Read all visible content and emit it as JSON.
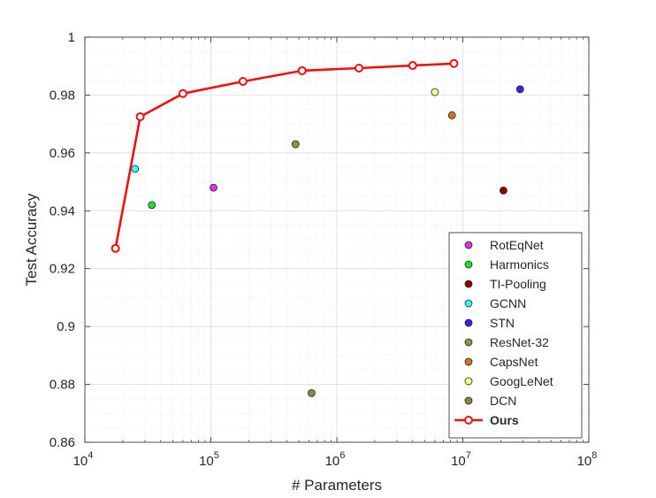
{
  "chart_data": {
    "type": "scatter",
    "xlabel": "# Parameters",
    "ylabel": "Test Accuracy",
    "xscale": "log",
    "xlim": [
      10000,
      100000000
    ],
    "ylim": [
      0.86,
      1.0
    ],
    "x_ticks": [
      {
        "value": 10000,
        "base": "10",
        "exp": "4"
      },
      {
        "value": 100000,
        "base": "10",
        "exp": "5"
      },
      {
        "value": 1000000,
        "base": "10",
        "exp": "6"
      },
      {
        "value": 10000000,
        "base": "10",
        "exp": "7"
      },
      {
        "value": 100000000,
        "base": "10",
        "exp": "8"
      }
    ],
    "y_ticks": [
      {
        "value": 0.86,
        "label": "0.86"
      },
      {
        "value": 0.88,
        "label": "0.88"
      },
      {
        "value": 0.9,
        "label": "0.9"
      },
      {
        "value": 0.92,
        "label": "0.92"
      },
      {
        "value": 0.94,
        "label": "0.94"
      },
      {
        "value": 0.96,
        "label": "0.96"
      },
      {
        "value": 0.98,
        "label": "0.98"
      },
      {
        "value": 1.0,
        "label": "1"
      }
    ],
    "grid": true,
    "legend_position": "bottom-right",
    "series": [
      {
        "name": "RotEqNet",
        "color": "#e030e8",
        "points": [
          [
            105000,
            0.948
          ]
        ]
      },
      {
        "name": "Harmonics",
        "color": "#22dd33",
        "points": [
          [
            34000,
            0.942
          ]
        ]
      },
      {
        "name": "TI-Pooling",
        "color": "#8b0000",
        "points": [
          [
            21000000,
            0.947
          ]
        ]
      },
      {
        "name": "GCNN",
        "color": "#33ffff",
        "points": [
          [
            25000,
            0.9545
          ]
        ]
      },
      {
        "name": "STN",
        "color": "#3a22e0",
        "points": [
          [
            28500000,
            0.982
          ]
        ]
      },
      {
        "name": "ResNet-32",
        "color": "#8a9a3a",
        "points": [
          [
            470000,
            0.963
          ]
        ]
      },
      {
        "name": "CapsNet",
        "color": "#d4701e",
        "points": [
          [
            8200000,
            0.973
          ]
        ]
      },
      {
        "name": "GoogLeNet",
        "color": "#ffff88",
        "points": [
          [
            6000000,
            0.981
          ]
        ]
      },
      {
        "name": "DCN",
        "color": "#8a8a40",
        "points": [
          [
            630000,
            0.877
          ]
        ]
      }
    ],
    "line_series": {
      "name": "Ours",
      "color": "#ee1111",
      "points": [
        [
          17500,
          0.927
        ],
        [
          27500,
          0.9725
        ],
        [
          60000,
          0.9805
        ],
        [
          180000,
          0.9847
        ],
        [
          530000,
          0.9884
        ],
        [
          1500000,
          0.9893
        ],
        [
          4000000,
          0.9902
        ],
        [
          8500000,
          0.9909
        ]
      ]
    }
  }
}
